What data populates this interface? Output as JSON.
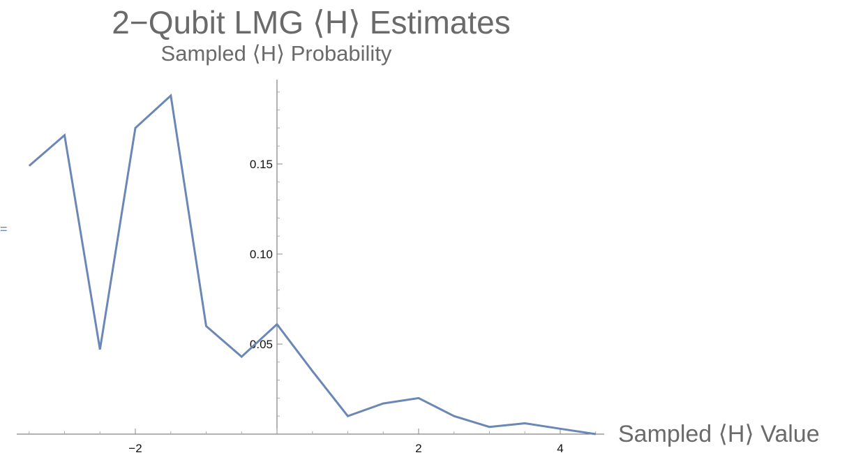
{
  "chart_data": {
    "type": "line",
    "title": "2−Qubit LMG ⟨H⟩ Estimates",
    "ylabel": "Sampled ⟨H⟩ Probability",
    "xlabel": "Sampled ⟨H⟩ Value",
    "xlim": [
      -3.5,
      4.5
    ],
    "ylim": [
      0,
      0.195
    ],
    "x_ticks": [
      {
        "value": -2,
        "label": "−2"
      },
      {
        "value": 2,
        "label": "2"
      },
      {
        "value": 4,
        "label": "4"
      }
    ],
    "y_ticks": [
      {
        "value": 0.05,
        "label": "0.05"
      },
      {
        "value": 0.1,
        "label": "0.10"
      },
      {
        "value": 0.15,
        "label": "0.15"
      }
    ],
    "grid": false,
    "legend": "none",
    "series": [
      {
        "color": "#6a87b5",
        "x": [
          -3.5,
          -3.0,
          -2.5,
          -2.0,
          -1.5,
          -1.0,
          -0.5,
          0.0,
          0.5,
          1.0,
          1.5,
          2.0,
          2.5,
          3.0,
          3.5,
          4.0,
          4.5
        ],
        "y": [
          0.149,
          0.166,
          0.047,
          0.17,
          0.188,
          0.06,
          0.043,
          0.061,
          0.035,
          0.01,
          0.017,
          0.02,
          0.01,
          0.004,
          0.006,
          0.003,
          0.0
        ]
      }
    ]
  },
  "stray_mark": "="
}
